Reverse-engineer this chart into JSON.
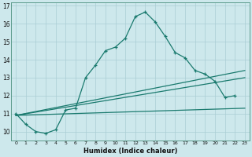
{
  "xlabel": "Humidex (Indice chaleur)",
  "background_color": "#cde8ec",
  "grid_color": "#aacdd4",
  "line_color": "#1a7a6e",
  "xlim": [
    -0.5,
    23.5
  ],
  "ylim": [
    9.5,
    17.2
  ],
  "xticks": [
    0,
    1,
    2,
    3,
    4,
    5,
    6,
    7,
    8,
    9,
    10,
    11,
    12,
    13,
    14,
    15,
    16,
    17,
    18,
    19,
    20,
    21,
    22,
    23
  ],
  "yticks": [
    10,
    11,
    12,
    13,
    14,
    15,
    16,
    17
  ],
  "line1_x": [
    0,
    1,
    2,
    3,
    4,
    5,
    6,
    7,
    8,
    9,
    10,
    11,
    12,
    13,
    14,
    15,
    16,
    17,
    18,
    19,
    20,
    21,
    22
  ],
  "line1_y": [
    11.0,
    10.4,
    10.0,
    9.9,
    10.1,
    11.2,
    11.3,
    13.0,
    13.7,
    14.5,
    14.7,
    15.2,
    16.4,
    16.65,
    16.1,
    15.3,
    14.4,
    14.1,
    13.4,
    13.2,
    12.8,
    11.9,
    12.0
  ],
  "line2_x": [
    0,
    23
  ],
  "line2_y": [
    10.9,
    11.3
  ],
  "line3_x": [
    0,
    23
  ],
  "line3_y": [
    10.9,
    13.0
  ],
  "line4_x": [
    0,
    23
  ],
  "line4_y": [
    10.9,
    13.4
  ]
}
